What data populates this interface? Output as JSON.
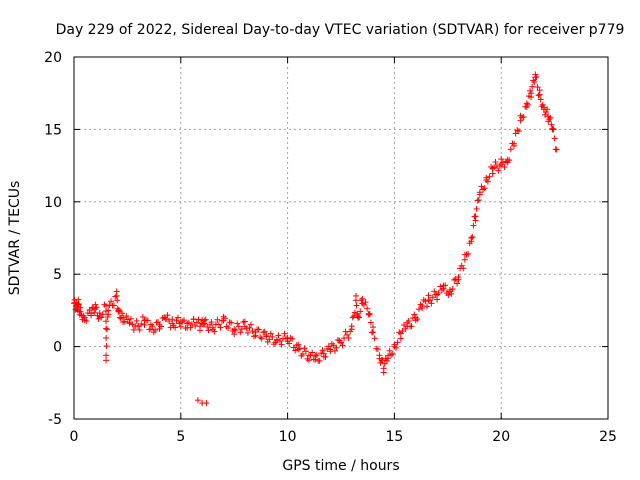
{
  "chart_data": {
    "type": "scatter",
    "title": "Day 229 of 2022, Sidereal Day-to-day VTEC variation (SDTVAR) for receiver p779",
    "xlabel": "GPS time / hours",
    "ylabel": "SDTVAR / TECUs",
    "xlim": [
      0,
      25
    ],
    "ylim": [
      -5,
      20
    ],
    "xticks": [
      0,
      5,
      10,
      15,
      20,
      25
    ],
    "yticks": [
      -5,
      0,
      5,
      10,
      15,
      20
    ],
    "grid": true,
    "legend": "none",
    "marker": "+",
    "series": [
      {
        "name": "SDTVAR",
        "color": "#ff0000",
        "x": [
          0.0,
          0.1,
          0.2,
          0.3,
          0.5,
          0.8,
          1.0,
          1.2,
          1.5,
          1.6,
          2.0,
          2.1,
          2.3,
          2.6,
          3.0,
          3.3,
          3.6,
          4.0,
          4.3,
          4.6,
          5.0,
          5.3,
          5.6,
          5.9,
          6.1,
          6.5,
          7.0,
          7.5,
          8.0,
          8.5,
          9.0,
          9.5,
          10.0,
          10.5,
          11.0,
          11.3,
          11.7,
          12.0,
          12.5,
          13.0,
          13.3,
          13.5,
          13.8,
          14.0,
          14.3,
          14.5,
          14.7,
          15.0,
          15.3,
          15.6,
          16.0,
          16.3,
          16.6,
          17.0,
          17.3,
          17.6,
          18.0,
          18.3,
          18.6,
          18.8,
          19.0,
          19.3,
          19.6,
          20.0,
          20.3,
          20.6,
          20.9,
          21.2,
          21.4,
          21.6,
          21.8,
          22.0,
          22.2,
          22.4,
          22.6,
          1.5,
          5.8,
          6.0,
          6.2,
          13.2
        ],
        "y": [
          3.0,
          2.6,
          2.9,
          2.4,
          2.0,
          2.3,
          2.6,
          2.1,
          2.8,
          2.5,
          3.5,
          2.4,
          2.0,
          1.6,
          1.4,
          1.8,
          1.2,
          1.5,
          1.9,
          1.6,
          1.7,
          1.3,
          1.9,
          1.4,
          1.6,
          1.3,
          1.8,
          1.2,
          1.4,
          1.0,
          0.7,
          0.4,
          0.6,
          -0.2,
          -0.6,
          -0.9,
          -0.5,
          -0.2,
          0.3,
          1.2,
          2.0,
          3.3,
          2.2,
          1.0,
          -0.6,
          -1.5,
          -0.8,
          0.0,
          0.9,
          1.4,
          2.0,
          2.8,
          3.2,
          3.6,
          4.0,
          3.8,
          4.8,
          6.0,
          7.5,
          9.0,
          10.5,
          11.5,
          12.3,
          12.6,
          12.9,
          14.0,
          15.6,
          16.8,
          17.5,
          18.6,
          17.4,
          16.5,
          15.9,
          15.0,
          13.6,
          -0.6,
          -3.7,
          -3.9,
          -3.9,
          3.2
        ]
      }
    ]
  }
}
